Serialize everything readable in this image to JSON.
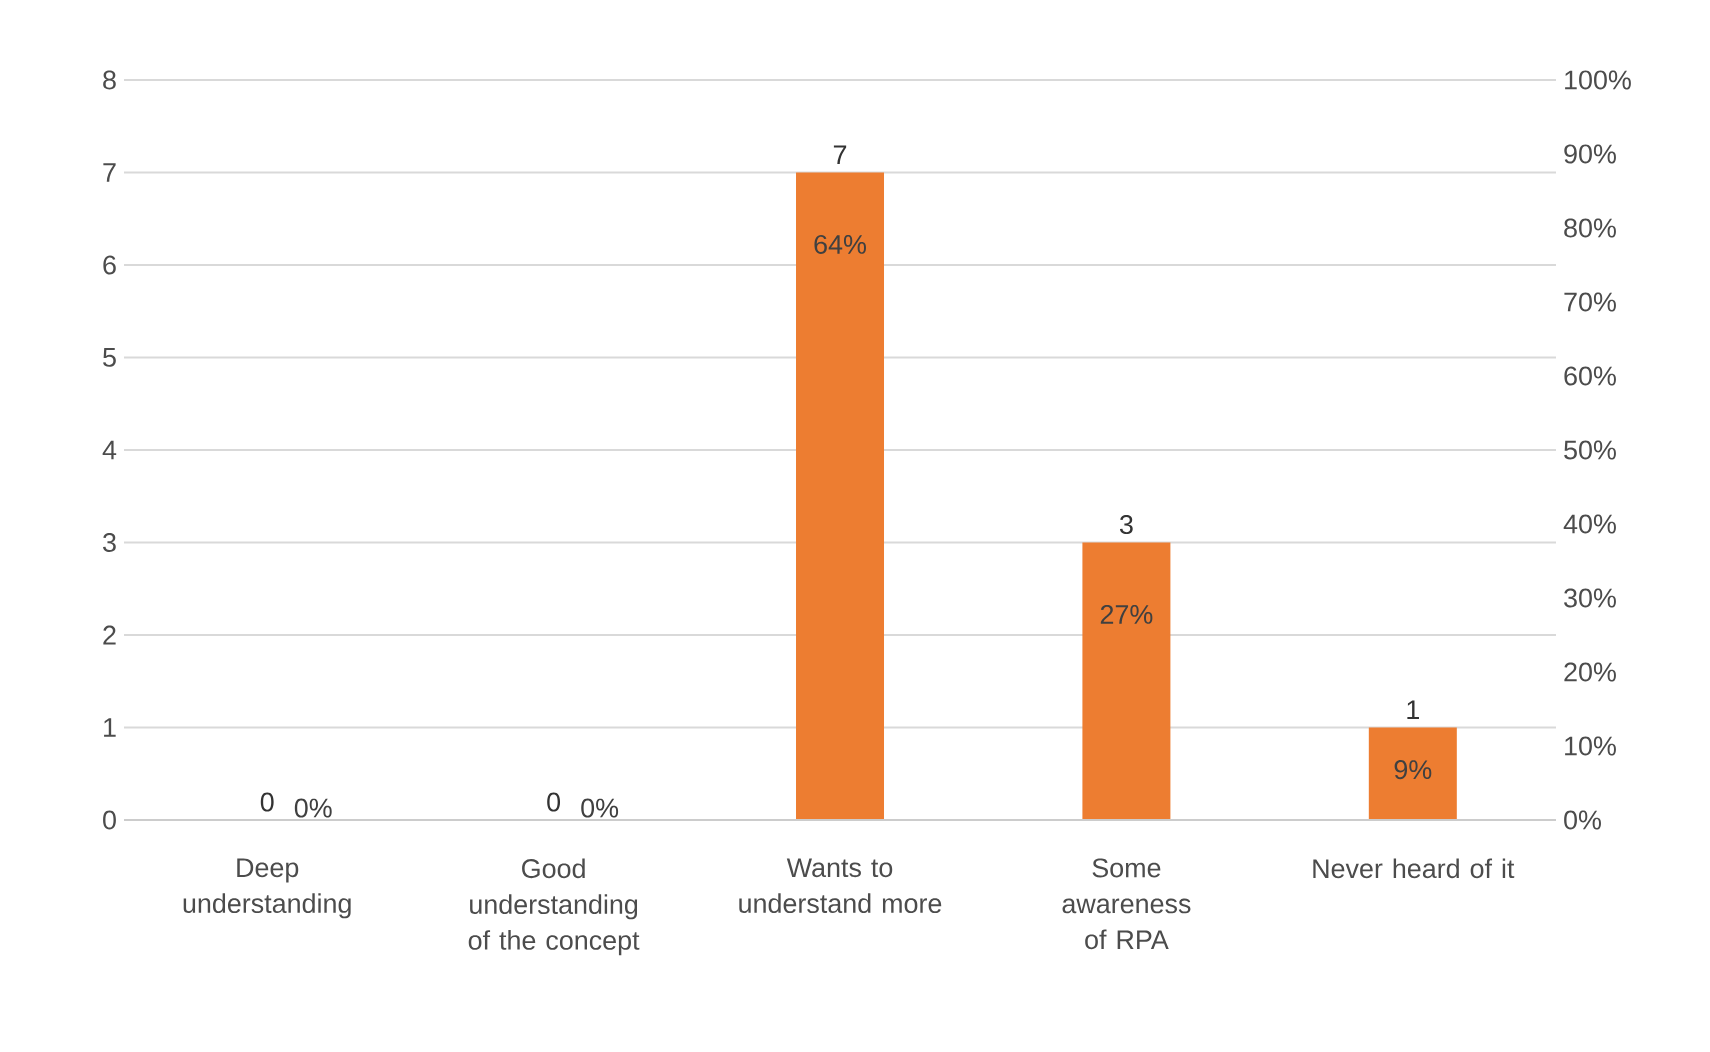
{
  "chart_data": {
    "type": "bar",
    "categories": [
      "Deep understanding",
      "Good understanding of the concept",
      "Wants to understand more",
      "Some awareness of RPA",
      "Never heard of it"
    ],
    "values": [
      0,
      0,
      7,
      3,
      1
    ],
    "color": "#ed7d31",
    "ylim": [
      0,
      8
    ],
    "yticks": [
      0,
      1,
      2,
      3,
      4,
      5,
      6,
      7,
      8
    ],
    "y2lim": [
      0,
      100
    ],
    "y2ticks": [
      {
        "value": 0,
        "label": "0%"
      },
      {
        "value": 10,
        "label": "10%"
      },
      {
        "value": 20,
        "label": "20%"
      },
      {
        "value": 30,
        "label": "30%"
      },
      {
        "value": 40,
        "label": "40%"
      },
      {
        "value": 50,
        "label": "50%"
      },
      {
        "value": 60,
        "label": "60%"
      },
      {
        "value": 70,
        "label": "70%"
      },
      {
        "value": 80,
        "label": "80%"
      },
      {
        "value": 90,
        "label": "90%"
      },
      {
        "value": 100,
        "label": "100%"
      }
    ],
    "annotations": [
      "0%",
      "0%",
      "64%",
      "27%",
      "9%"
    ],
    "grid": "y",
    "data_labels": true
  }
}
